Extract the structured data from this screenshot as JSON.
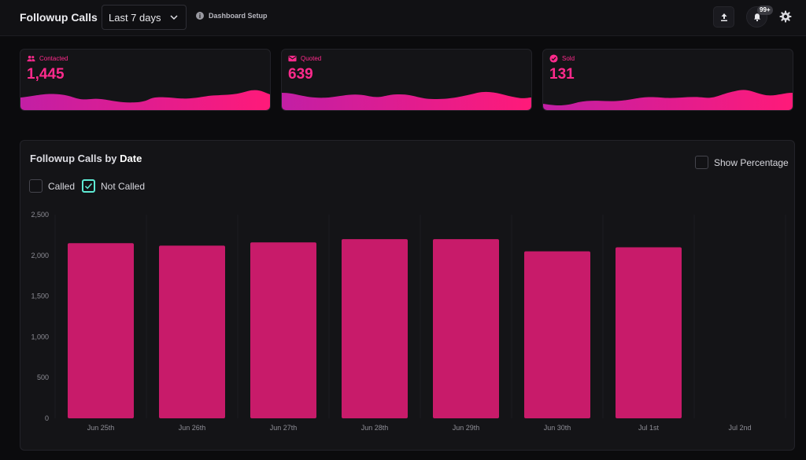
{
  "header": {
    "title": "Followup Calls",
    "range": "Last 7 days",
    "setup_label": "Dashboard Setup",
    "notifications_badge": "99+"
  },
  "kpis": [
    {
      "label": "Contacted",
      "value": "1,445",
      "icon": "people-icon",
      "color": "#ff2a8c"
    },
    {
      "label": "Quoted",
      "value": "639",
      "icon": "mail-icon",
      "color": "#ff2a8c"
    },
    {
      "label": "Sold",
      "value": "131",
      "icon": "check-circle-icon",
      "color": "#ff2a8c"
    }
  ],
  "panel": {
    "title_prefix": "Followup Calls by ",
    "title_bold": "Date",
    "show_percentage_label": "Show Percentage",
    "legend": [
      {
        "label": "Called",
        "checked": false
      },
      {
        "label": "Not Called",
        "checked": true
      }
    ]
  },
  "chart_data": {
    "type": "bar",
    "categories": [
      "Jun 25th",
      "Jun 26th",
      "Jun 27th",
      "Jun 28th",
      "Jun 29th",
      "Jun 30th",
      "Jul 1st",
      "Jul 2nd"
    ],
    "series": [
      {
        "name": "Not Called",
        "values": [
          2150,
          2120,
          2160,
          2200,
          2200,
          2050,
          2100,
          0
        ]
      }
    ],
    "ylim": [
      0,
      2500
    ],
    "yticks": [
      0,
      500,
      1000,
      1500,
      2000,
      2500
    ],
    "ytick_labels": [
      "0",
      "500",
      "1,000",
      "1,500",
      "2,000",
      "2,500"
    ],
    "bar_color": "#c81b6a",
    "grid": true
  }
}
